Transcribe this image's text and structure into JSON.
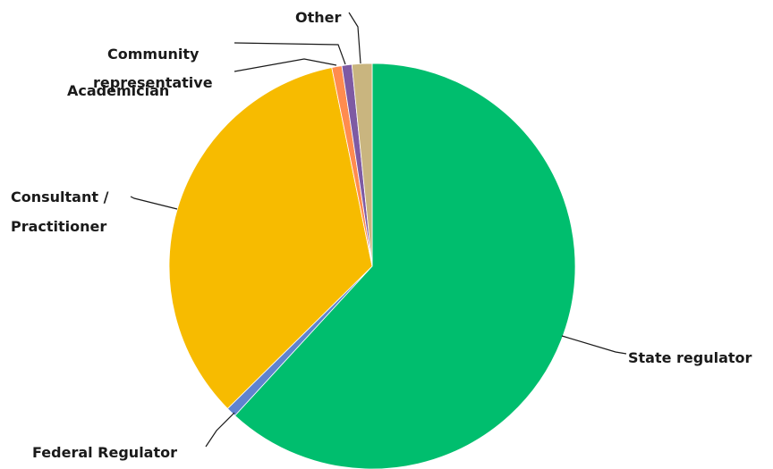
{
  "chart_data": {
    "type": "pie",
    "title": "",
    "start_angle_deg": 0,
    "direction": "clockwise",
    "slices": [
      {
        "label": "State regulator",
        "value": 62.0,
        "color": "#00be6e"
      },
      {
        "label": "Federal Regulator",
        "value": 0.8,
        "color": "#6083cf"
      },
      {
        "label": "Consultant / Practitioner",
        "value": 34.3,
        "color": "#f7bb00"
      },
      {
        "label": "Academician",
        "value": 0.8,
        "color": "#ff8c4f"
      },
      {
        "label": "Community representative",
        "value": 0.8,
        "color": "#7e5aa3"
      },
      {
        "label": "Other",
        "value": 1.6,
        "color": "#c9b57f"
      }
    ],
    "legend": "none",
    "data_labels": "category names outside with leader lines"
  }
}
